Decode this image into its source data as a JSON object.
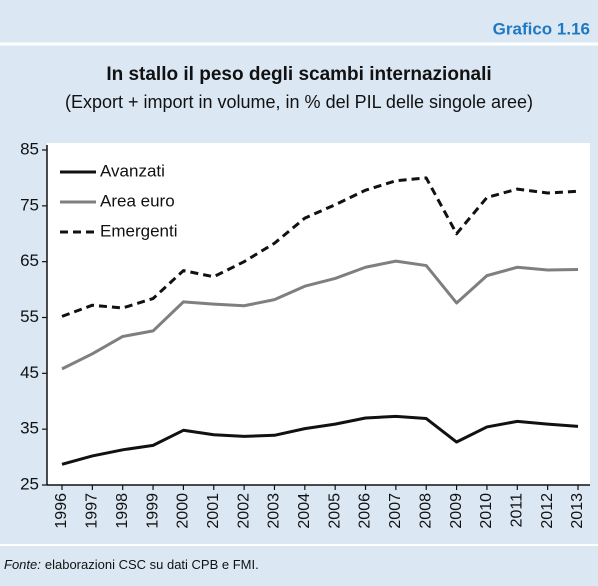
{
  "chart_data": {
    "type": "line",
    "label": "Grafico 1.16",
    "title": "In stallo il peso degli scambi internazionali",
    "subtitle": "(Export + import in volume, in % del PIL delle singole aree)",
    "categories": [
      "1996",
      "1997",
      "1998",
      "1999",
      "2000",
      "2001",
      "2002",
      "2003",
      "2004",
      "2005",
      "2006",
      "2007",
      "2008",
      "2009",
      "2010",
      "2011",
      "2012",
      "2013"
    ],
    "series": [
      {
        "name": "Avanzati",
        "color": "#111111",
        "dash": false,
        "values": [
          28.7,
          30.2,
          31.3,
          32.1,
          34.8,
          34.0,
          33.7,
          33.9,
          35.1,
          35.9,
          37.0,
          37.3,
          36.9,
          32.7,
          35.4,
          36.4,
          35.9,
          35.5
        ]
      },
      {
        "name": "Area euro",
        "color": "#7f7f7f",
        "dash": false,
        "values": [
          45.8,
          48.5,
          51.6,
          52.6,
          57.8,
          57.4,
          57.1,
          58.2,
          60.6,
          62.0,
          64.0,
          65.1,
          64.3,
          57.6,
          62.5,
          64.0,
          63.5,
          63.6
        ]
      },
      {
        "name": "Emergenti",
        "color": "#111111",
        "dash": true,
        "values": [
          55.2,
          57.2,
          56.7,
          58.4,
          63.4,
          62.3,
          65.0,
          68.3,
          72.8,
          75.2,
          77.8,
          79.5,
          80.0,
          70.0,
          76.5,
          78.0,
          77.3,
          77.6
        ]
      }
    ],
    "ylim": [
      25,
      85
    ],
    "yticks": [
      25,
      35,
      45,
      55,
      65,
      75,
      85
    ],
    "grid": false,
    "legend": "top-left",
    "source_label": "Fonte:",
    "source_text": "elaborazioni CSC su dati CPB e FMI."
  }
}
